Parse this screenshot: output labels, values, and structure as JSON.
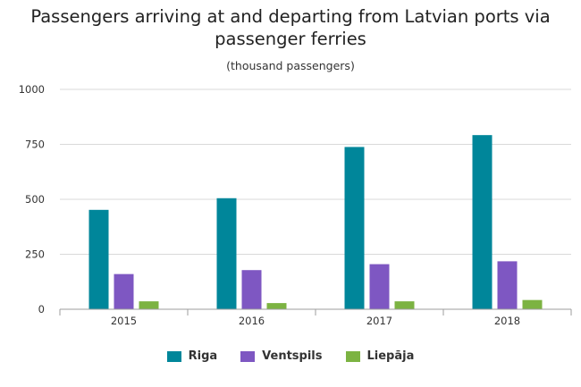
{
  "chart_data": {
    "type": "bar",
    "title": "Passengers arriving at and departing from Latvian ports via passenger ferries",
    "subtitle": "(thousand passengers)",
    "xlabel": "",
    "ylabel": "",
    "categories": [
      "2015",
      "2016",
      "2017",
      "2018"
    ],
    "ylim": [
      0,
      1000
    ],
    "yticks": [
      0,
      250,
      500,
      750,
      1000
    ],
    "grid": true,
    "legend_position": "bottom",
    "series": [
      {
        "name": "Riga",
        "color": "#00869A",
        "values": [
          452,
          505,
          738,
          792
        ]
      },
      {
        "name": "Ventspils",
        "color": "#7E57C2",
        "values": [
          160,
          178,
          205,
          218
        ]
      },
      {
        "name": "Liepāja",
        "color": "#7CB342",
        "values": [
          36,
          28,
          36,
          42
        ]
      }
    ]
  }
}
